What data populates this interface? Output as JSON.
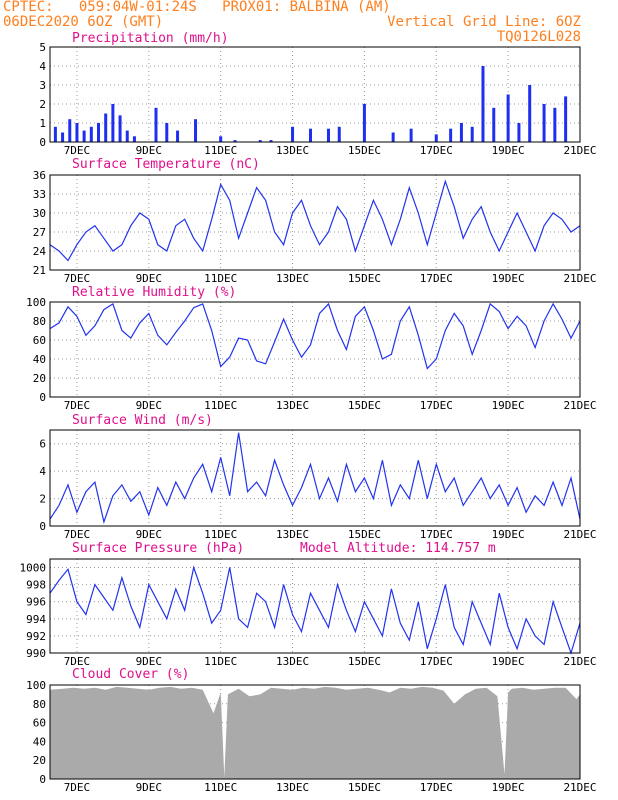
{
  "header": {
    "line1_left": "CPTEC:   059:04W-01:24S   PROX01: BALBINA (AM)",
    "line2_left": "06DEC2020 6OZ (GMT)",
    "line2_right": "Vertical Grid Line: 6OZ",
    "line3_right": "TQ0126L028"
  },
  "colors": {
    "header": "#ff7f1e",
    "title": "#e0108c",
    "line": "#2233ee",
    "bar": "#1f2ff0",
    "cloud": "#aaaaaa",
    "grid": "#999999",
    "frame": "#000000"
  },
  "x_tick_labels": [
    "7DEC",
    "9DEC",
    "11DEC",
    "13DEC",
    "15DEC",
    "17DEC",
    "19DEC",
    "21DEC"
  ],
  "x_range_days": [
    6.25,
    21
  ],
  "chart_data": [
    {
      "type": "bar",
      "title": "Precipitation (mm/h)",
      "ylim": [
        0,
        5
      ],
      "yticks": [
        0,
        1,
        2,
        3,
        4,
        5
      ],
      "x": [
        6.4,
        6.6,
        6.8,
        7.0,
        7.2,
        7.4,
        7.6,
        7.8,
        8.0,
        8.2,
        8.4,
        8.6,
        9.2,
        9.5,
        9.8,
        10.3,
        11.0,
        11.4,
        11.8,
        12.1,
        12.4,
        13.0,
        13.5,
        14.0,
        14.3,
        15.0,
        15.8,
        16.3,
        17.0,
        17.4,
        17.7,
        18.0,
        18.3,
        18.6,
        19.0,
        19.3,
        19.6,
        20.0,
        20.3,
        20.6
      ],
      "values": [
        0.8,
        0.5,
        1.2,
        1.0,
        0.6,
        0.8,
        1.0,
        1.5,
        2.0,
        1.4,
        0.6,
        0.3,
        1.8,
        1.0,
        0.6,
        1.2,
        0.3,
        0.1,
        0.0,
        0.1,
        0.1,
        0.8,
        0.7,
        0.7,
        0.8,
        2.0,
        0.5,
        0.7,
        0.4,
        0.7,
        1.0,
        0.8,
        4.0,
        1.8,
        2.5,
        1.0,
        3.0,
        2.0,
        1.8,
        2.4
      ]
    },
    {
      "type": "line",
      "title": "Surface Temperature (nC)",
      "ylim": [
        21,
        36
      ],
      "yticks": [
        21,
        24,
        27,
        30,
        33,
        36
      ],
      "x": [
        6.25,
        6.5,
        6.75,
        7.0,
        7.25,
        7.5,
        7.75,
        8.0,
        8.25,
        8.5,
        8.75,
        9.0,
        9.25,
        9.5,
        9.75,
        10.0,
        10.25,
        10.5,
        10.75,
        11.0,
        11.25,
        11.5,
        11.75,
        12.0,
        12.25,
        12.5,
        12.75,
        13.0,
        13.25,
        13.5,
        13.75,
        14.0,
        14.25,
        14.5,
        14.75,
        15.0,
        15.25,
        15.5,
        15.75,
        16.0,
        16.25,
        16.5,
        16.75,
        17.0,
        17.25,
        17.5,
        17.75,
        18.0,
        18.25,
        18.5,
        18.75,
        19.0,
        19.25,
        19.5,
        19.75,
        20.0,
        20.25,
        20.5,
        20.75,
        21.0
      ],
      "values": [
        25,
        24,
        22.5,
        25,
        27,
        28,
        26,
        24,
        25,
        28,
        30,
        29,
        25,
        24,
        28,
        29,
        26,
        24,
        29,
        34.5,
        32,
        26,
        30,
        34,
        32,
        27,
        25,
        30,
        32,
        28,
        25,
        27,
        31,
        29,
        24,
        28,
        32,
        29,
        25,
        29,
        34,
        30,
        25,
        30,
        35,
        31,
        26,
        29,
        31,
        27,
        24,
        27,
        30,
        27,
        24,
        28,
        30,
        29,
        27,
        28
      ]
    },
    {
      "type": "line",
      "title": "Relative Humidity (%)",
      "ylim": [
        0,
        100
      ],
      "yticks": [
        0,
        20,
        40,
        60,
        80,
        100
      ],
      "x": [
        6.25,
        6.5,
        6.75,
        7.0,
        7.25,
        7.5,
        7.75,
        8.0,
        8.25,
        8.5,
        8.75,
        9.0,
        9.25,
        9.5,
        9.75,
        10.0,
        10.25,
        10.5,
        10.75,
        11.0,
        11.25,
        11.5,
        11.75,
        12.0,
        12.25,
        12.5,
        12.75,
        13.0,
        13.25,
        13.5,
        13.75,
        14.0,
        14.25,
        14.5,
        14.75,
        15.0,
        15.25,
        15.5,
        15.75,
        16.0,
        16.25,
        16.5,
        16.75,
        17.0,
        17.25,
        17.5,
        17.75,
        18.0,
        18.25,
        18.5,
        18.75,
        19.0,
        19.25,
        19.5,
        19.75,
        20.0,
        20.25,
        20.5,
        20.75,
        21.0
      ],
      "values": [
        72,
        78,
        95,
        85,
        65,
        75,
        92,
        98,
        70,
        62,
        78,
        88,
        65,
        55,
        68,
        80,
        94,
        98,
        70,
        32,
        42,
        62,
        60,
        38,
        35,
        58,
        82,
        60,
        42,
        55,
        88,
        98,
        70,
        50,
        85,
        95,
        70,
        40,
        45,
        80,
        95,
        65,
        30,
        40,
        70,
        88,
        75,
        45,
        70,
        98,
        90,
        72,
        85,
        75,
        52,
        80,
        98,
        82,
        62,
        80
      ]
    },
    {
      "type": "line",
      "title": "Surface Wind (m/s)",
      "ylim": [
        0,
        7
      ],
      "yticks": [
        0,
        2,
        4,
        6
      ],
      "x": [
        6.25,
        6.5,
        6.75,
        7.0,
        7.25,
        7.5,
        7.75,
        8.0,
        8.25,
        8.5,
        8.75,
        9.0,
        9.25,
        9.5,
        9.75,
        10.0,
        10.25,
        10.5,
        10.75,
        11.0,
        11.25,
        11.5,
        11.75,
        12.0,
        12.25,
        12.5,
        12.75,
        13.0,
        13.25,
        13.5,
        13.75,
        14.0,
        14.25,
        14.5,
        14.75,
        15.0,
        15.25,
        15.5,
        15.75,
        16.0,
        16.25,
        16.5,
        16.75,
        17.0,
        17.25,
        17.5,
        17.75,
        18.0,
        18.25,
        18.5,
        18.75,
        19.0,
        19.25,
        19.5,
        19.75,
        20.0,
        20.25,
        20.5,
        20.75,
        21.0
      ],
      "values": [
        0.5,
        1.5,
        3.0,
        1.0,
        2.5,
        3.2,
        0.3,
        2.2,
        3.0,
        1.8,
        2.5,
        0.8,
        2.8,
        1.5,
        3.2,
        2.0,
        3.5,
        4.5,
        2.5,
        5.0,
        2.2,
        6.8,
        2.5,
        3.2,
        2.2,
        4.8,
        3.0,
        1.5,
        2.8,
        4.5,
        2.0,
        3.5,
        1.8,
        4.5,
        2.5,
        3.5,
        2.0,
        4.8,
        1.5,
        3.0,
        2.0,
        4.8,
        2.0,
        4.5,
        2.5,
        3.5,
        1.5,
        2.5,
        3.5,
        2.0,
        3.0,
        1.5,
        2.8,
        1.0,
        2.2,
        1.5,
        3.2,
        1.5,
        3.5,
        0.5
      ]
    },
    {
      "type": "line",
      "title": "Surface Pressure (hPa)",
      "annotation": "Model Altitude: 114.757 m",
      "ylim": [
        990,
        1001
      ],
      "yticks": [
        990,
        992,
        994,
        996,
        998,
        1000
      ],
      "x": [
        6.25,
        6.5,
        6.75,
        7.0,
        7.25,
        7.5,
        7.75,
        8.0,
        8.25,
        8.5,
        8.75,
        9.0,
        9.25,
        9.5,
        9.75,
        10.0,
        10.25,
        10.5,
        10.75,
        11.0,
        11.25,
        11.5,
        11.75,
        12.0,
        12.25,
        12.5,
        12.75,
        13.0,
        13.25,
        13.5,
        13.75,
        14.0,
        14.25,
        14.5,
        14.75,
        15.0,
        15.25,
        15.5,
        15.75,
        16.0,
        16.25,
        16.5,
        16.75,
        17.0,
        17.25,
        17.5,
        17.75,
        18.0,
        18.25,
        18.5,
        18.75,
        19.0,
        19.25,
        19.5,
        19.75,
        20.0,
        20.25,
        20.5,
        20.75,
        21.0
      ],
      "values": [
        997,
        998.5,
        999.8,
        996,
        994.5,
        998,
        996.5,
        995,
        998.8,
        995.5,
        993,
        998,
        996,
        994,
        997.5,
        995,
        1000,
        997,
        993.5,
        995,
        1000,
        994,
        993,
        997,
        996,
        993,
        998,
        994.5,
        992.5,
        997,
        995,
        993,
        998,
        995,
        992.5,
        996,
        994,
        992,
        997.5,
        993.5,
        991.5,
        996,
        990.5,
        994,
        998,
        993,
        991,
        996,
        993.5,
        991,
        997,
        993,
        990.5,
        994,
        992,
        991,
        996,
        993,
        990,
        993.5
      ]
    },
    {
      "type": "area",
      "title": "Cloud Cover (%)",
      "ylim": [
        0,
        100
      ],
      "yticks": [
        0,
        20,
        40,
        60,
        80,
        100
      ],
      "x": [
        6.25,
        6.6,
        6.9,
        7.2,
        7.5,
        7.8,
        8.1,
        8.4,
        8.7,
        9.0,
        9.3,
        9.6,
        9.9,
        10.2,
        10.5,
        10.8,
        11.0,
        11.1,
        11.2,
        11.5,
        11.8,
        12.1,
        12.4,
        12.7,
        13.0,
        13.3,
        13.6,
        13.9,
        14.2,
        14.5,
        14.8,
        15.1,
        15.4,
        15.7,
        16.0,
        16.3,
        16.6,
        16.9,
        17.2,
        17.5,
        17.8,
        18.1,
        18.4,
        18.7,
        18.9,
        19.0,
        19.1,
        19.4,
        19.7,
        20.0,
        20.3,
        20.6,
        20.9,
        21.0
      ],
      "values": [
        95,
        96,
        97,
        96,
        97,
        95,
        98,
        97,
        96,
        95,
        97,
        98,
        96,
        97,
        95,
        70,
        92,
        2,
        90,
        96,
        88,
        90,
        97,
        96,
        95,
        97,
        96,
        98,
        97,
        95,
        96,
        97,
        95,
        92,
        97,
        96,
        98,
        97,
        94,
        80,
        90,
        96,
        97,
        88,
        5,
        92,
        96,
        97,
        95,
        96,
        97,
        97,
        85,
        90
      ]
    }
  ]
}
